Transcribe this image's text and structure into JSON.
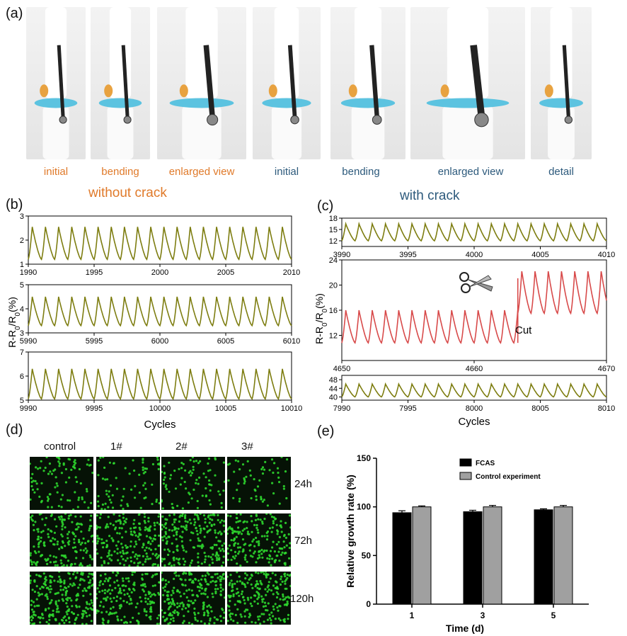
{
  "panel_labels": {
    "a": "(a)",
    "b": "(b)",
    "c": "(c)",
    "d": "(d)",
    "e": "(e)"
  },
  "photos": [
    {
      "caption": "initial",
      "color": "orange"
    },
    {
      "caption": "bending",
      "color": "orange"
    },
    {
      "caption": "enlarged view",
      "color": "orange"
    },
    {
      "caption": "initial",
      "color": "blue"
    },
    {
      "caption": "bending",
      "color": "blue"
    },
    {
      "caption": "enlarged view",
      "color": "blue"
    },
    {
      "caption": "detail",
      "color": "blue"
    }
  ],
  "headings": {
    "without_crack": "without crack",
    "with_crack": "with crack"
  },
  "colors": {
    "olive": "#7d7d10",
    "red": "#d84a4a",
    "orange": "#e07a2a",
    "blue": "#2d5a7c",
    "cell_green": "#2ed62e"
  },
  "chart_data": [
    {
      "panel": "b",
      "type": "line",
      "xlabel": "Cycles",
      "ylabel": "R-R0/R0(%)",
      "subplots": [
        {
          "xlim": [
            1990,
            2010
          ],
          "ylim": [
            1,
            3
          ],
          "xticks": [
            "1990",
            "1995",
            "2000",
            "2005",
            "2010"
          ],
          "yticks": [
            "1",
            "2",
            "3"
          ],
          "min": 1.2,
          "max": 2.55,
          "series_color": "#7d7d10"
        },
        {
          "xlim": [
            5990,
            6010
          ],
          "ylim": [
            3,
            5
          ],
          "xticks": [
            "5990",
            "5995",
            "6000",
            "6005",
            "6010"
          ],
          "yticks": [
            "3",
            "4",
            "5"
          ],
          "min": 3.3,
          "max": 4.5,
          "series_color": "#7d7d10"
        },
        {
          "xlim": [
            9990,
            10010
          ],
          "ylim": [
            5,
            7
          ],
          "xticks": [
            "9990",
            "9995",
            "10000",
            "10005",
            "10010"
          ],
          "yticks": [
            "5",
            "6",
            "7"
          ],
          "min": 5.05,
          "max": 6.3,
          "series_color": "#7d7d10"
        }
      ]
    },
    {
      "panel": "c",
      "type": "line",
      "xlabel": "Cycles",
      "ylabel": "R-R0/R0(%)",
      "annotation": "Cut",
      "subplots": [
        {
          "xlim": [
            3990,
            4010
          ],
          "ylim": [
            10.5,
            18
          ],
          "xticks": [
            "3990",
            "3995",
            "4000",
            "4005",
            "4010"
          ],
          "yticks": [
            "12",
            "15",
            "18"
          ],
          "min": 12,
          "max": 16.5,
          "series_color": "#7d7d10"
        },
        {
          "xlim": [
            4650,
            4670
          ],
          "ylim": [
            8,
            24
          ],
          "xticks": [
            "4650",
            "4660",
            "4670"
          ],
          "yticks": [
            "12",
            "16",
            "20",
            "24"
          ],
          "before_cut": {
            "min": 10.8,
            "max": 16,
            "until": 4663.3
          },
          "after_cut": {
            "min": 15.5,
            "max": 22.2
          },
          "series_color": "#d84a4a"
        },
        {
          "xlim": [
            7990,
            8010
          ],
          "ylim": [
            38.5,
            50
          ],
          "xticks": [
            "7990",
            "7995",
            "8000",
            "8005",
            "8010"
          ],
          "yticks": [
            "40",
            "44",
            "48"
          ],
          "min": 40,
          "max": 46,
          "series_color": "#7d7d10"
        }
      ]
    },
    {
      "panel": "e",
      "type": "bar",
      "categories": [
        "1",
        "3",
        "5"
      ],
      "series": [
        {
          "name": "FCAS",
          "values": [
            94,
            95,
            97
          ],
          "errors": [
            2,
            1.5,
            1
          ],
          "color": "#000000"
        },
        {
          "name": "Control experiment",
          "values": [
            100,
            100,
            100
          ],
          "errors": [
            1,
            1.5,
            1.5
          ],
          "color": "#a0a0a0"
        }
      ],
      "xlabel": "Time (d)",
      "ylabel": "Relative growth rate  (%)",
      "ylim": [
        0,
        150
      ],
      "yticks": [
        "0",
        "50",
        "100",
        "150"
      ],
      "legend": "top-right"
    }
  ],
  "fluorescence": {
    "columns": [
      "control",
      "1#",
      "2#",
      "3#"
    ],
    "rows": [
      "24h",
      "72h",
      "120h"
    ],
    "density": [
      [
        0.35,
        0.28,
        0.32,
        0.22
      ],
      [
        0.7,
        0.75,
        0.8,
        0.72
      ],
      [
        0.9,
        0.7,
        0.85,
        0.8
      ]
    ]
  }
}
